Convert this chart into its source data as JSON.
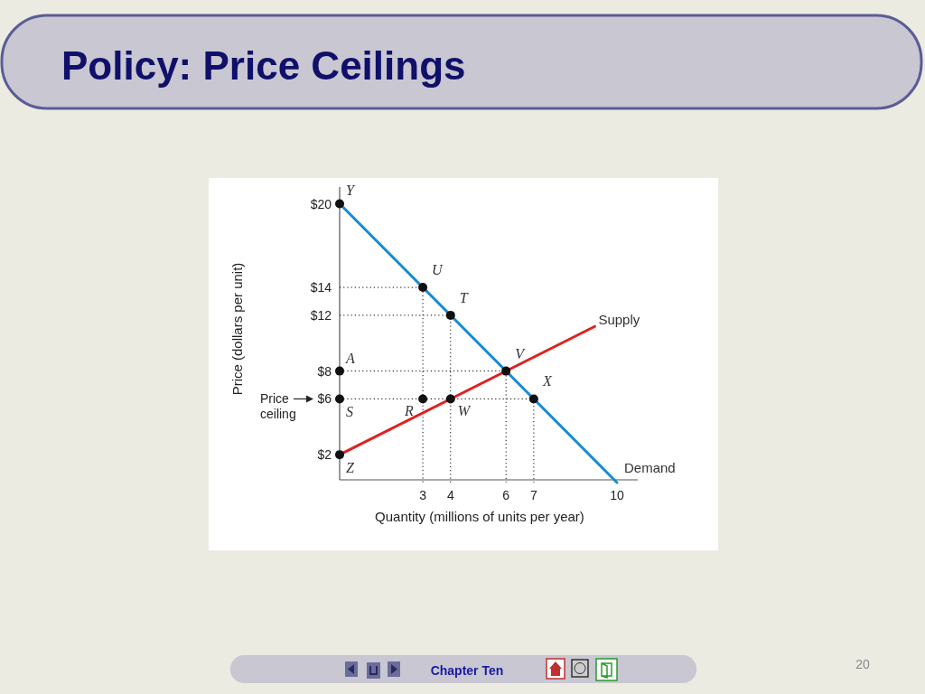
{
  "chart_data": {
    "type": "line",
    "title": "Policy: Price Ceilings",
    "xlabel": "Quantity (millions of units per year)",
    "ylabel": "Price (dollars per unit)",
    "xlim": [
      0,
      10.75
    ],
    "ylim": [
      0,
      21.2
    ],
    "xticks": [
      3,
      4,
      6,
      7,
      10
    ],
    "yticks": [
      {
        "value": 2,
        "label": "$2"
      },
      {
        "value": 6,
        "label": "$6"
      },
      {
        "value": 8,
        "label": "$8"
      },
      {
        "value": 12,
        "label": "$12"
      },
      {
        "value": 14,
        "label": "$14"
      },
      {
        "value": 20,
        "label": "$20"
      }
    ],
    "grid": false,
    "legend": false,
    "series": [
      {
        "x": [
          0,
          3,
          3
        ],
        "values": [
          14,
          14,
          0
        ],
        "color": "#000000",
        "line_style": "dotted",
        "marker": "none"
      },
      {
        "x": [
          0,
          4,
          4
        ],
        "values": [
          12,
          12,
          0
        ],
        "color": "#000000",
        "line_style": "dotted",
        "marker": "none"
      },
      {
        "x": [
          0,
          6,
          6
        ],
        "values": [
          8,
          8,
          0
        ],
        "color": "#000000",
        "line_style": "dotted",
        "marker": "none"
      },
      {
        "x": [
          0,
          7,
          7
        ],
        "values": [
          6,
          6,
          0
        ],
        "color": "#000000",
        "line_style": "dotted",
        "marker": "none"
      },
      {
        "name": "Demand",
        "x": [
          0,
          10
        ],
        "values": [
          20,
          0
        ],
        "color": "#1a8ad4",
        "line_style": "solid",
        "marker": "none"
      },
      {
        "name": "Supply",
        "x": [
          0,
          9.2
        ],
        "values": [
          2,
          11.2
        ],
        "color": "#e02020",
        "line_style": "solid",
        "marker": "none"
      },
      {
        "type": "scatter",
        "x": [
          0,
          3,
          4,
          0,
          6,
          0,
          3,
          4,
          7,
          0
        ],
        "values": [
          20,
          14,
          12,
          8,
          8,
          6,
          6,
          6,
          6,
          2
        ],
        "color": "#111111",
        "marker": "circle"
      }
    ],
    "annotations": [
      "Price ceiling",
      "Chapter Ten",
      "20",
      {
        "text": "Y",
        "x": 0,
        "y": 20
      },
      {
        "text": "U",
        "x": 3,
        "y": 14
      },
      {
        "text": "T",
        "x": 4,
        "y": 12
      },
      {
        "text": "A",
        "x": 0,
        "y": 8
      },
      {
        "text": "V",
        "x": 6,
        "y": 8
      },
      {
        "text": "S",
        "x": 0,
        "y": 6
      },
      {
        "text": "R",
        "x": 3,
        "y": 6
      },
      {
        "text": "W",
        "x": 4,
        "y": 6
      },
      {
        "text": "X",
        "x": 7,
        "y": 6
      },
      {
        "text": "Z",
        "x": 0,
        "y": 2
      }
    ]
  }
}
